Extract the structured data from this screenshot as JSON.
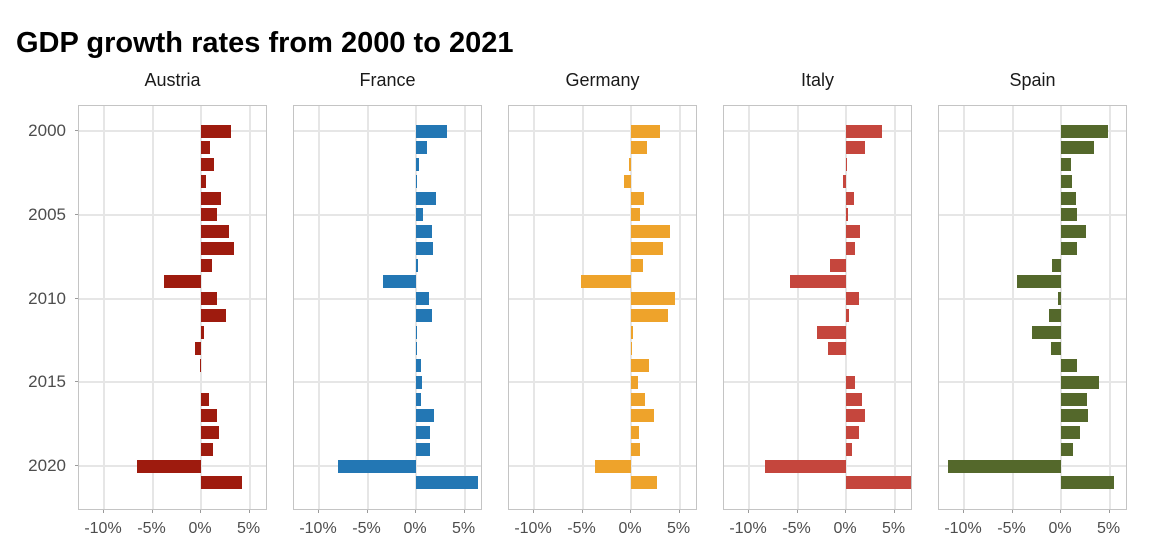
{
  "title": "GDP growth rates from 2000 to 2021",
  "chart_data": {
    "type": "bar",
    "orientation": "horizontal",
    "unit": "percent",
    "grid": true,
    "facets": [
      "Austria",
      "France",
      "Germany",
      "Italy",
      "Spain"
    ],
    "years": [
      2000,
      2001,
      2002,
      2003,
      2004,
      2005,
      2006,
      2007,
      2008,
      2009,
      2010,
      2011,
      2012,
      2013,
      2014,
      2015,
      2016,
      2017,
      2018,
      2019,
      2020,
      2021
    ],
    "series": [
      {
        "name": "Austria",
        "color": "#9e1b0e",
        "values": [
          3.1,
          0.9,
          1.3,
          0.5,
          2.1,
          1.6,
          2.9,
          3.4,
          1.1,
          -3.8,
          1.6,
          2.6,
          0.3,
          -0.6,
          -0.1,
          0.0,
          0.8,
          1.6,
          1.9,
          1.2,
          -6.6,
          4.2
        ]
      },
      {
        "name": "France",
        "color": "#2377b4",
        "values": [
          3.2,
          1.1,
          0.3,
          0.1,
          2.1,
          0.7,
          1.7,
          1.8,
          0.2,
          -3.4,
          1.3,
          1.7,
          0.1,
          0.1,
          0.5,
          0.6,
          0.5,
          1.9,
          1.4,
          1.4,
          -8.0,
          6.4
        ]
      },
      {
        "name": "Germany",
        "color": "#eea32b",
        "values": [
          3.0,
          1.6,
          -0.2,
          -0.7,
          1.3,
          0.9,
          4.0,
          3.3,
          1.2,
          -5.2,
          4.5,
          3.8,
          0.2,
          0.1,
          1.9,
          0.7,
          1.4,
          2.4,
          0.8,
          0.9,
          -3.7,
          2.7
        ]
      },
      {
        "name": "Italy",
        "color": "#c5463d",
        "values": [
          3.7,
          2.0,
          0.1,
          -0.3,
          0.8,
          0.2,
          1.4,
          0.9,
          -1.7,
          -5.8,
          1.3,
          0.3,
          -3.0,
          -1.9,
          0.0,
          0.9,
          1.6,
          2.0,
          1.3,
          0.6,
          -8.4,
          7.4
        ]
      },
      {
        "name": "Spain",
        "color": "#54682b",
        "values": [
          4.8,
          3.4,
          1.0,
          1.1,
          1.5,
          1.7,
          2.6,
          1.6,
          -0.9,
          -4.5,
          -0.3,
          -1.2,
          -3.0,
          -1.0,
          1.6,
          3.9,
          2.7,
          2.8,
          2.0,
          1.2,
          -11.7,
          5.5
        ]
      }
    ],
    "x_axis": {
      "tick_labels": [
        "-10%",
        "-5%",
        "0%",
        "5%"
      ],
      "tick_values": [
        -10,
        -5,
        0,
        5
      ],
      "range": [
        -12.6,
        6.8
      ]
    },
    "y_axis": {
      "tick_labels": [
        "2000",
        "2005",
        "2010",
        "2015",
        "2020"
      ],
      "tick_values": [
        2000,
        2005,
        2010,
        2015,
        2020
      ],
      "range": [
        2000,
        2021
      ]
    },
    "colors": {
      "grid": "#e6e6e6",
      "panel_border": "#c4c4c4",
      "axis_text": "#4d4d4d",
      "title_text": "#000000"
    }
  }
}
